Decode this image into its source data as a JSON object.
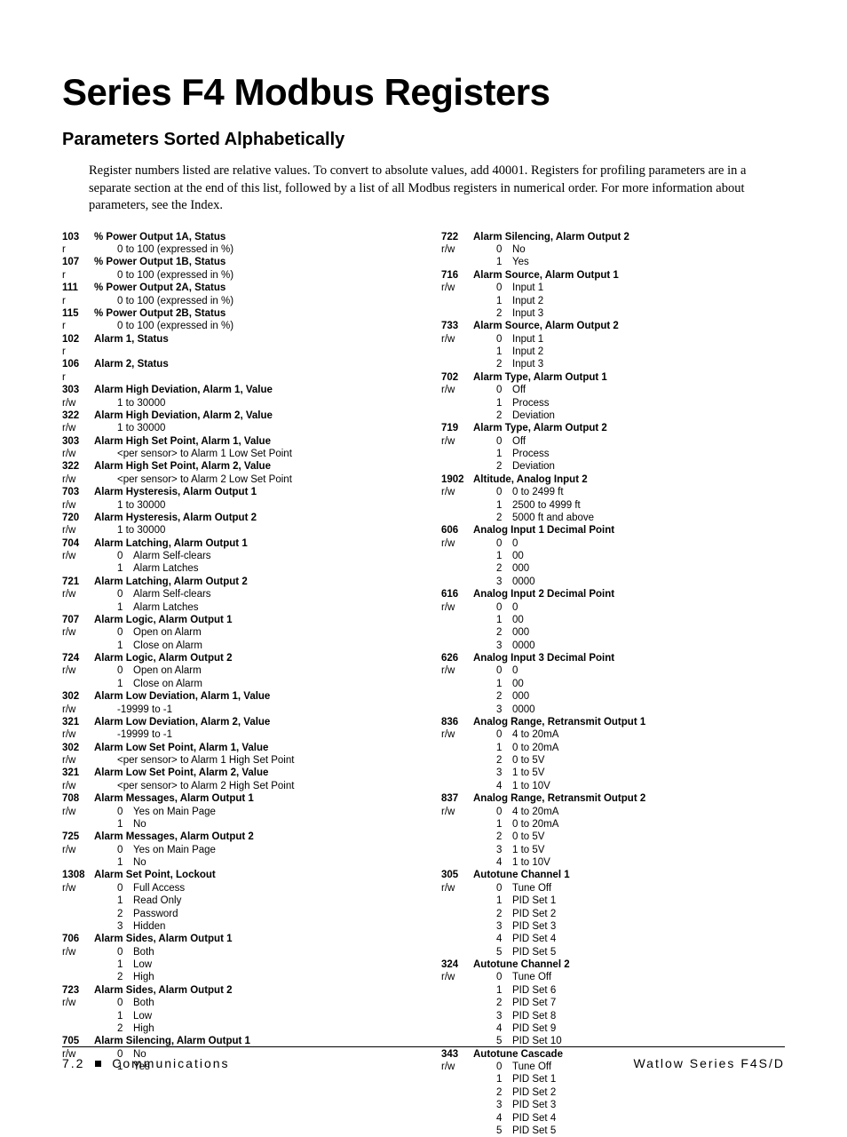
{
  "title": "Series F4 Modbus Registers",
  "subtitle": "Parameters Sorted Alphabetically",
  "intro": "Register numbers listed are relative values. To convert to absolute values, add 40001. Registers for profiling parameters are in a separate section at the end of this list, followed by a list of all Modbus registers in numerical order. For more information about parameters, see the Index.",
  "footer_left_page": "7.2",
  "footer_left_label": "Communications",
  "footer_right": "Watlow Series F4S/D",
  "left": [
    {
      "reg": "103",
      "rw": "r",
      "name": "% Power Output 1A, Status",
      "range": "0 to 100 (expressed in %)"
    },
    {
      "reg": "107",
      "rw": "r",
      "name": "% Power Output 1B, Status",
      "range": "0 to 100 (expressed in %)"
    },
    {
      "reg": "111",
      "rw": "r",
      "name": "% Power Output 2A, Status",
      "range": "0 to 100 (expressed in %)"
    },
    {
      "reg": "115",
      "rw": "r",
      "name": "% Power Output 2B, Status",
      "range": "0 to 100 (expressed in %)"
    },
    {
      "reg": "102",
      "rw": "r",
      "name": "Alarm 1, Status"
    },
    {
      "reg": "106",
      "rw": "r",
      "name": "Alarm 2, Status"
    },
    {
      "reg": "303",
      "rw": "r/w",
      "name": "Alarm High Deviation, Alarm 1, Value",
      "range": "1 to 30000"
    },
    {
      "reg": "322",
      "rw": "r/w",
      "name": "Alarm High Deviation, Alarm 2, Value",
      "range": "1 to 30000"
    },
    {
      "reg": "303",
      "rw": "r/w",
      "name": "Alarm High Set Point, Alarm 1, Value",
      "range": "<per sensor> to Alarm 1 Low Set Point"
    },
    {
      "reg": "322",
      "rw": "r/w",
      "name": "Alarm High Set Point, Alarm 2, Value",
      "range": "<per sensor> to Alarm 2 Low Set Point"
    },
    {
      "reg": "703",
      "rw": "r/w",
      "name": "Alarm Hysteresis, Alarm Output 1",
      "range": "1 to 30000"
    },
    {
      "reg": "720",
      "rw": "r/w",
      "name": "Alarm Hysteresis, Alarm Output 2",
      "range": "1 to 30000"
    },
    {
      "reg": "704",
      "rw": "r/w",
      "name": "Alarm Latching, Alarm Output 1",
      "options": [
        [
          "0",
          "Alarm Self-clears"
        ],
        [
          "1",
          "Alarm Latches"
        ]
      ]
    },
    {
      "reg": "721",
      "rw": "r/w",
      "name": "Alarm Latching, Alarm Output 2",
      "options": [
        [
          "0",
          "Alarm Self-clears"
        ],
        [
          "1",
          "Alarm Latches"
        ]
      ]
    },
    {
      "reg": "707",
      "rw": "r/w",
      "name": "Alarm Logic, Alarm Output 1",
      "options": [
        [
          "0",
          "Open on Alarm"
        ],
        [
          "1",
          "Close on Alarm"
        ]
      ]
    },
    {
      "reg": "724",
      "rw": "r/w",
      "name": "Alarm Logic, Alarm Output 2",
      "options": [
        [
          "0",
          "Open on Alarm"
        ],
        [
          "1",
          "Close on Alarm"
        ]
      ]
    },
    {
      "reg": "302",
      "rw": "r/w",
      "name": "Alarm Low Deviation, Alarm 1, Value",
      "range": "-19999 to -1"
    },
    {
      "reg": "321",
      "rw": "r/w",
      "name": "Alarm Low Deviation, Alarm 2, Value",
      "range": "-19999 to -1"
    },
    {
      "reg": "302",
      "rw": "r/w",
      "name": "Alarm Low Set Point, Alarm 1, Value",
      "range": "<per sensor> to Alarm 1 High Set Point"
    },
    {
      "reg": "321",
      "rw": "r/w",
      "name": "Alarm Low Set Point, Alarm 2, Value",
      "range": "<per sensor> to Alarm 2 High Set Point"
    },
    {
      "reg": "708",
      "rw": "r/w",
      "name": "Alarm Messages, Alarm Output 1",
      "options": [
        [
          "0",
          "Yes on Main Page"
        ],
        [
          "1",
          "No"
        ]
      ]
    },
    {
      "reg": "725",
      "rw": "r/w",
      "name": "Alarm Messages, Alarm Output 2",
      "options": [
        [
          "0",
          "Yes on Main Page"
        ],
        [
          "1",
          "No"
        ]
      ]
    },
    {
      "reg": "1308",
      "rw": "r/w",
      "name": "Alarm Set Point, Lockout",
      "options": [
        [
          "0",
          "Full Access"
        ],
        [
          "1",
          "Read Only"
        ],
        [
          "2",
          "Password"
        ],
        [
          "3",
          "Hidden"
        ]
      ]
    },
    {
      "reg": "706",
      "rw": "r/w",
      "name": "Alarm Sides, Alarm Output 1",
      "options": [
        [
          "0",
          "Both"
        ],
        [
          "1",
          "Low"
        ],
        [
          "2",
          "High"
        ]
      ]
    },
    {
      "reg": "723",
      "rw": "r/w",
      "name": "Alarm Sides, Alarm Output 2",
      "options": [
        [
          "0",
          "Both"
        ],
        [
          "1",
          "Low"
        ],
        [
          "2",
          "High"
        ]
      ]
    },
    {
      "reg": "705",
      "rw": "r/w",
      "name": "Alarm Silencing, Alarm Output 1",
      "options": [
        [
          "0",
          "No"
        ],
        [
          "1",
          "Yes"
        ]
      ]
    }
  ],
  "right": [
    {
      "reg": "722",
      "rw": "r/w",
      "name": "Alarm Silencing, Alarm Output 2",
      "options": [
        [
          "0",
          "No"
        ],
        [
          "1",
          "Yes"
        ]
      ]
    },
    {
      "reg": "716",
      "rw": "r/w",
      "name": "Alarm Source, Alarm Output 1",
      "options": [
        [
          "0",
          "Input 1"
        ],
        [
          "1",
          "Input 2"
        ],
        [
          "2",
          "Input 3"
        ]
      ]
    },
    {
      "reg": "733",
      "rw": "r/w",
      "name": "Alarm Source, Alarm Output 2",
      "options": [
        [
          "0",
          "Input 1"
        ],
        [
          "1",
          "Input 2"
        ],
        [
          "2",
          "Input 3"
        ]
      ]
    },
    {
      "reg": "702",
      "rw": "r/w",
      "name": "Alarm Type, Alarm Output 1",
      "options": [
        [
          "0",
          "Off"
        ],
        [
          "1",
          "Process"
        ],
        [
          "2",
          "Deviation"
        ]
      ]
    },
    {
      "reg": "719",
      "rw": "r/w",
      "name": "Alarm Type, Alarm Output 2",
      "options": [
        [
          "0",
          "Off"
        ],
        [
          "1",
          "Process"
        ],
        [
          "2",
          "Deviation"
        ]
      ]
    },
    {
      "reg": "1902",
      "rw": "r/w",
      "name": "Altitude, Analog Input 2",
      "options": [
        [
          "0",
          "0 to 2499 ft"
        ],
        [
          "1",
          "2500 to 4999 ft"
        ],
        [
          "2",
          "5000 ft and above"
        ]
      ]
    },
    {
      "reg": "606",
      "rw": "r/w",
      "name": "Analog Input 1 Decimal Point",
      "options": [
        [
          "0",
          "0"
        ],
        [
          "1",
          "00"
        ],
        [
          "2",
          "000"
        ],
        [
          "3",
          "0000"
        ]
      ]
    },
    {
      "reg": "616",
      "rw": "r/w",
      "name": "Analog Input 2 Decimal Point",
      "options": [
        [
          "0",
          "0"
        ],
        [
          "1",
          "00"
        ],
        [
          "2",
          "000"
        ],
        [
          "3",
          "0000"
        ]
      ]
    },
    {
      "reg": "626",
      "rw": "r/w",
      "name": "Analog Input 3 Decimal Point",
      "options": [
        [
          "0",
          "0"
        ],
        [
          "1",
          "00"
        ],
        [
          "2",
          "000"
        ],
        [
          "3",
          "0000"
        ]
      ]
    },
    {
      "reg": "836",
      "rw": "r/w",
      "name": "Analog Range, Retransmit Output 1",
      "options": [
        [
          "0",
          "4 to 20mA"
        ],
        [
          "1",
          "0 to 20mA"
        ],
        [
          "2",
          "0 to 5V"
        ],
        [
          "3",
          "1 to 5V"
        ],
        [
          "4",
          "1 to 10V"
        ]
      ]
    },
    {
      "reg": "837",
      "rw": "r/w",
      "name": "Analog Range, Retransmit Output 2",
      "options": [
        [
          "0",
          "4 to 20mA"
        ],
        [
          "1",
          "0 to 20mA"
        ],
        [
          "2",
          "0 to 5V"
        ],
        [
          "3",
          "1 to 5V"
        ],
        [
          "4",
          "1 to 10V"
        ]
      ]
    },
    {
      "reg": "305",
      "rw": "r/w",
      "name": "Autotune Channel 1",
      "options": [
        [
          "0",
          "Tune Off"
        ],
        [
          "1",
          "PID Set 1"
        ],
        [
          "2",
          "PID Set 2"
        ],
        [
          "3",
          "PID Set 3"
        ],
        [
          "4",
          "PID Set 4"
        ],
        [
          "5",
          "PID Set 5"
        ]
      ]
    },
    {
      "reg": "324",
      "rw": "r/w",
      "name": "Autotune Channel 2",
      "options": [
        [
          "0",
          "Tune Off"
        ],
        [
          "1",
          "PID Set 6"
        ],
        [
          "2",
          "PID Set 7"
        ],
        [
          "3",
          "PID Set 8"
        ],
        [
          "4",
          "PID Set 9"
        ],
        [
          "5",
          "PID Set 10"
        ]
      ]
    },
    {
      "reg": "343",
      "rw": "r/w",
      "name": "Autotune Cascade",
      "options": [
        [
          "0",
          "Tune Off"
        ],
        [
          "1",
          "PID Set 1"
        ],
        [
          "2",
          "PID Set 2"
        ],
        [
          "3",
          "PID Set 3"
        ],
        [
          "4",
          "PID Set 4"
        ],
        [
          "5",
          "PID Set 5"
        ]
      ]
    }
  ]
}
